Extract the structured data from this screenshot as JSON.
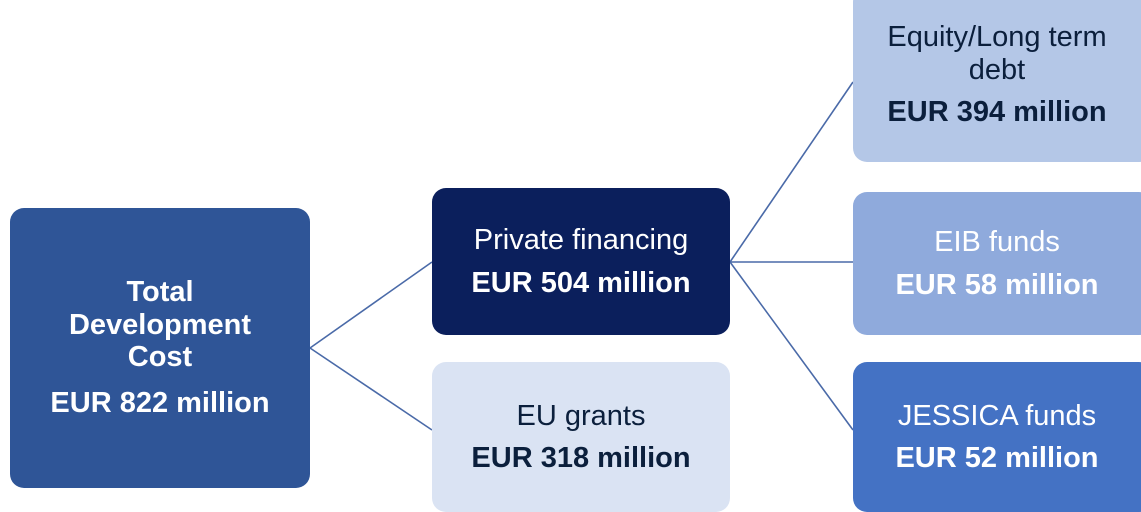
{
  "nodes": [
    {
      "label": "Total Development Cost",
      "value": "EUR 822 million"
    },
    {
      "label": "Private financing",
      "value": "EUR 504 million"
    },
    {
      "label": "EU grants",
      "value": "EUR 318 million"
    },
    {
      "label": "Equity/Long term debt",
      "value": "EUR 394 million"
    },
    {
      "label": "EIB funds",
      "value": "EUR 58 million"
    },
    {
      "label": "JESSICA funds",
      "value": "EUR 52 million"
    }
  ]
}
